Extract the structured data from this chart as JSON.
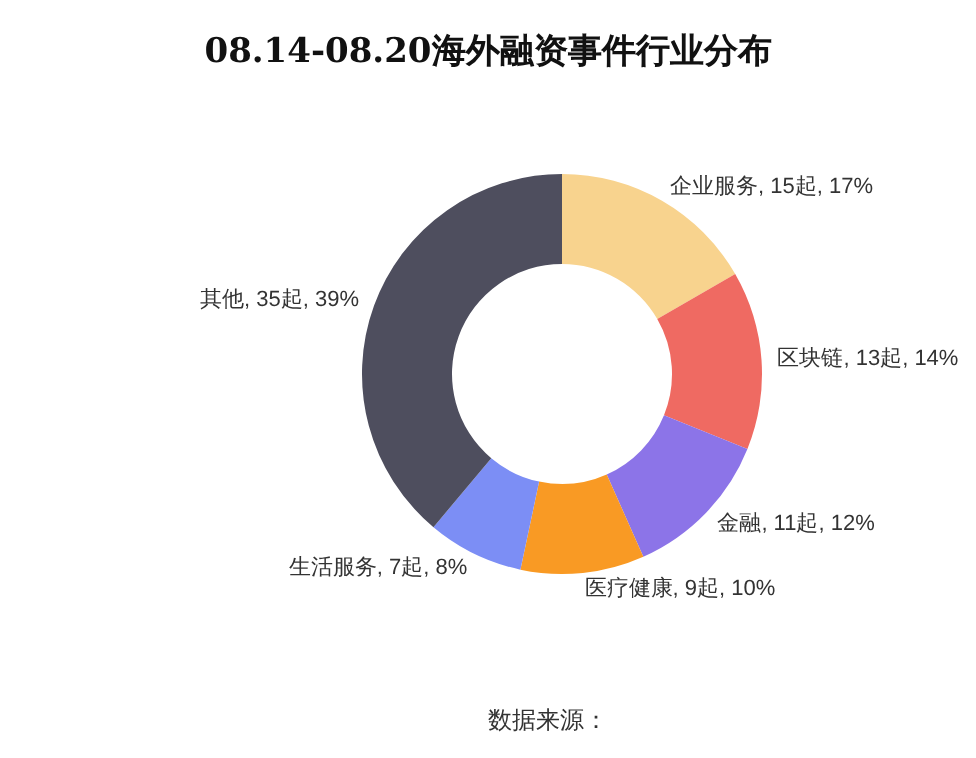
{
  "chart_data": {
    "type": "donut",
    "title": "08.14-08.20海外融资事件行业分布",
    "categories": [
      "企业服务",
      "区块链",
      "金融",
      "医疗健康",
      "生活服务",
      "其他"
    ],
    "values": [
      15,
      13,
      11,
      9,
      7,
      35
    ],
    "value_labels": [
      "15起, 17%",
      "13起, 14%",
      "11起, 12%",
      "9起, 10%",
      "7起, 8%",
      "35起, 39%"
    ],
    "colors": [
      "#f8d38e",
      "#ef6a62",
      "#8c74e8",
      "#f99a24",
      "#7c8ef5",
      "#4e4e5e"
    ],
    "annotations": [
      "数据来源："
    ],
    "legend": false
  }
}
